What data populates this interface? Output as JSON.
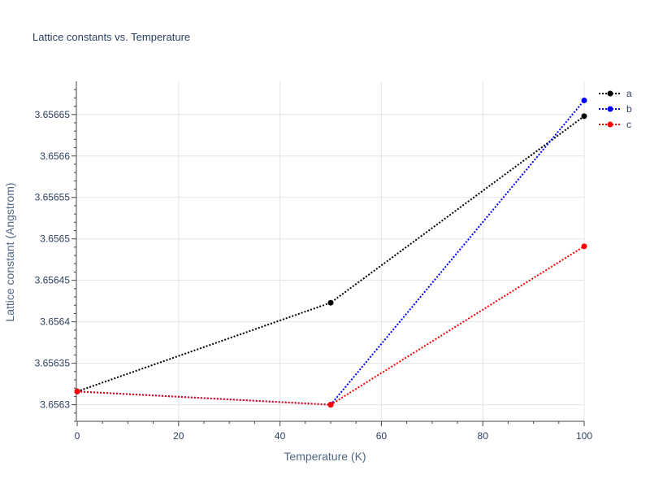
{
  "chart_data": {
    "type": "line",
    "title": "Lattice constants vs. Temperature",
    "xlabel": "Temperature (K)",
    "ylabel": "Lattice constant (Angstrom)",
    "x": [
      0,
      50,
      100
    ],
    "xlim": [
      0,
      100
    ],
    "ylim": [
      3.65628,
      3.65669
    ],
    "xticks": [
      0,
      20,
      40,
      60,
      80,
      100
    ],
    "yticks": [
      3.6563,
      3.65635,
      3.6564,
      3.65645,
      3.6565,
      3.65655,
      3.6566,
      3.65665
    ],
    "ytick_labels": [
      "3.6563",
      "3.65635",
      "3.6564",
      "3.65645",
      "3.6565",
      "3.65655",
      "3.6566",
      "3.65665"
    ],
    "grid": true,
    "legend_position": "top-right",
    "series": [
      {
        "name": "a",
        "color": "#000000",
        "values": [
          3.656316,
          3.656423,
          3.656648
        ]
      },
      {
        "name": "b",
        "color": "#0000ff",
        "values": [
          3.656316,
          3.6563,
          3.656667
        ]
      },
      {
        "name": "c",
        "color": "#ff0000",
        "values": [
          3.656316,
          3.6563,
          3.656491
        ]
      }
    ]
  }
}
